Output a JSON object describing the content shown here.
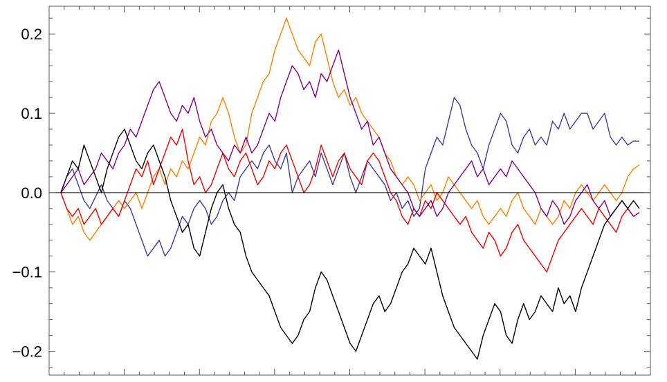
{
  "chart_data": {
    "type": "line",
    "title": "",
    "xlabel": "",
    "ylabel": "",
    "xlim": [
      0,
      1
    ],
    "ylim": [
      -0.23,
      0.235
    ],
    "y_ticks": [
      -0.2,
      -0.1,
      0.0,
      0.1,
      0.2
    ],
    "y_tick_labels": [
      "−0.2",
      "−0.1",
      "0.0",
      "0.1",
      "0.2"
    ],
    "grid": false,
    "zero_line": true,
    "series": [
      {
        "color": "#3b3b9a",
        "x": [
          0,
          0.01,
          0.02,
          0.03,
          0.04,
          0.05,
          0.06,
          0.07,
          0.08,
          0.09,
          0.1,
          0.11,
          0.12,
          0.13,
          0.14,
          0.15,
          0.16,
          0.17,
          0.18,
          0.19,
          0.2,
          0.21,
          0.22,
          0.23,
          0.24,
          0.25,
          0.26,
          0.27,
          0.28,
          0.29,
          0.3,
          0.31,
          0.32,
          0.33,
          0.34,
          0.35,
          0.36,
          0.37,
          0.38,
          0.39,
          0.4,
          0.41,
          0.42,
          0.43,
          0.44,
          0.45,
          0.46,
          0.47,
          0.48,
          0.49,
          0.5,
          0.51,
          0.52,
          0.53,
          0.54,
          0.55,
          0.56,
          0.57,
          0.58,
          0.59,
          0.6,
          0.61,
          0.62,
          0.63,
          0.64,
          0.65,
          0.66,
          0.67,
          0.68,
          0.69,
          0.7,
          0.71,
          0.72,
          0.73,
          0.74,
          0.75,
          0.76,
          0.77,
          0.78,
          0.79,
          0.8,
          0.81,
          0.82,
          0.83,
          0.84,
          0.85,
          0.86,
          0.87,
          0.88,
          0.89,
          0.9,
          0.91,
          0.92,
          0.93,
          0.94,
          0.95,
          0.96,
          0.97,
          0.98,
          0.99,
          1.0
        ],
        "y": [
          0.0,
          0.02,
          0.03,
          0.01,
          -0.01,
          -0.02,
          -0.005,
          0.01,
          -0.01,
          -0.02,
          -0.03,
          -0.01,
          -0.02,
          -0.04,
          -0.06,
          -0.08,
          -0.07,
          -0.06,
          -0.08,
          -0.07,
          -0.05,
          -0.03,
          -0.04,
          -0.02,
          -0.01,
          -0.02,
          -0.04,
          -0.03,
          -0.01,
          0.0,
          -0.01,
          0.02,
          0.03,
          0.04,
          0.03,
          0.05,
          0.06,
          0.04,
          0.03,
          0.05,
          0.0,
          0.02,
          0.03,
          0.04,
          0.02,
          0.05,
          0.03,
          0.01,
          0.03,
          0.05,
          0.02,
          0.0,
          0.02,
          0.04,
          0.03,
          0.02,
          0.01,
          -0.01,
          0.0,
          -0.02,
          -0.01,
          -0.03,
          -0.02,
          0.03,
          0.05,
          0.07,
          0.06,
          0.09,
          0.12,
          0.11,
          0.08,
          0.06,
          0.05,
          0.03,
          0.06,
          0.08,
          0.1,
          0.09,
          0.06,
          0.05,
          0.07,
          0.08,
          0.06,
          0.07,
          0.06,
          0.09,
          0.08,
          0.1,
          0.08,
          0.09,
          0.1,
          0.1,
          0.08,
          0.09,
          0.1,
          0.07,
          0.06,
          0.07,
          0.06,
          0.065,
          0.065
        ]
      },
      {
        "color": "#ff8000",
        "x": [
          0,
          0.01,
          0.02,
          0.03,
          0.04,
          0.05,
          0.06,
          0.07,
          0.08,
          0.09,
          0.1,
          0.11,
          0.12,
          0.13,
          0.14,
          0.15,
          0.16,
          0.17,
          0.18,
          0.19,
          0.2,
          0.21,
          0.22,
          0.23,
          0.24,
          0.25,
          0.26,
          0.27,
          0.28,
          0.29,
          0.3,
          0.31,
          0.32,
          0.33,
          0.34,
          0.35,
          0.36,
          0.37,
          0.38,
          0.39,
          0.4,
          0.41,
          0.42,
          0.43,
          0.44,
          0.45,
          0.46,
          0.47,
          0.48,
          0.49,
          0.5,
          0.51,
          0.52,
          0.53,
          0.54,
          0.55,
          0.56,
          0.57,
          0.58,
          0.59,
          0.6,
          0.61,
          0.62,
          0.63,
          0.64,
          0.65,
          0.66,
          0.67,
          0.68,
          0.69,
          0.7,
          0.71,
          0.72,
          0.73,
          0.74,
          0.75,
          0.76,
          0.77,
          0.78,
          0.79,
          0.8,
          0.81,
          0.82,
          0.83,
          0.84,
          0.85,
          0.86,
          0.87,
          0.88,
          0.89,
          0.9,
          0.91,
          0.92,
          0.93,
          0.94,
          0.95,
          0.96,
          0.97,
          0.98,
          0.99,
          1.0
        ],
        "y": [
          0.0,
          -0.02,
          -0.04,
          -0.03,
          -0.05,
          -0.06,
          -0.05,
          -0.04,
          -0.03,
          -0.02,
          -0.01,
          -0.02,
          -0.01,
          0.0,
          -0.02,
          0.0,
          0.02,
          0.03,
          0.01,
          0.03,
          0.02,
          0.04,
          0.03,
          0.05,
          0.07,
          0.06,
          0.09,
          0.1,
          0.12,
          0.1,
          0.07,
          0.05,
          0.06,
          0.1,
          0.12,
          0.14,
          0.15,
          0.18,
          0.2,
          0.22,
          0.2,
          0.18,
          0.17,
          0.16,
          0.19,
          0.2,
          0.17,
          0.14,
          0.12,
          0.13,
          0.11,
          0.12,
          0.1,
          0.09,
          0.08,
          0.07,
          0.05,
          0.04,
          0.02,
          0.01,
          0.02,
          0.01,
          -0.01,
          0.0,
          0.01,
          -0.01,
          0.0,
          0.02,
          0.01,
          0.0,
          -0.01,
          -0.02,
          -0.01,
          -0.03,
          -0.04,
          -0.03,
          -0.02,
          -0.03,
          -0.01,
          0.0,
          -0.02,
          -0.03,
          -0.04,
          -0.02,
          -0.03,
          -0.04,
          -0.03,
          -0.01,
          -0.02,
          0.0,
          0.01,
          0.0,
          -0.01,
          0.0,
          0.01,
          0.0,
          -0.01,
          0.0,
          0.02,
          0.03,
          0.035
        ]
      },
      {
        "color": "#ee0000",
        "x": [
          0,
          0.01,
          0.02,
          0.03,
          0.04,
          0.05,
          0.06,
          0.07,
          0.08,
          0.09,
          0.1,
          0.11,
          0.12,
          0.13,
          0.14,
          0.15,
          0.16,
          0.17,
          0.18,
          0.19,
          0.2,
          0.21,
          0.22,
          0.23,
          0.24,
          0.25,
          0.26,
          0.27,
          0.28,
          0.29,
          0.3,
          0.31,
          0.32,
          0.33,
          0.34,
          0.35,
          0.36,
          0.37,
          0.38,
          0.39,
          0.4,
          0.41,
          0.42,
          0.43,
          0.44,
          0.45,
          0.46,
          0.47,
          0.48,
          0.49,
          0.5,
          0.51,
          0.52,
          0.53,
          0.54,
          0.55,
          0.56,
          0.57,
          0.58,
          0.59,
          0.6,
          0.61,
          0.62,
          0.63,
          0.64,
          0.65,
          0.66,
          0.67,
          0.68,
          0.69,
          0.7,
          0.71,
          0.72,
          0.73,
          0.74,
          0.75,
          0.76,
          0.77,
          0.78,
          0.79,
          0.8,
          0.81,
          0.82,
          0.83,
          0.84,
          0.85,
          0.86,
          0.87,
          0.88,
          0.89,
          0.9,
          0.91,
          0.92,
          0.93,
          0.94,
          0.95,
          0.96,
          0.97,
          0.98,
          0.99,
          1.0
        ],
        "y": [
          0.0,
          -0.02,
          -0.03,
          -0.02,
          -0.04,
          -0.03,
          -0.02,
          -0.04,
          -0.03,
          -0.02,
          -0.03,
          -0.01,
          0.01,
          0.03,
          0.02,
          0.04,
          0.01,
          0.03,
          0.05,
          0.07,
          0.06,
          0.08,
          0.04,
          0.01,
          0.02,
          0.0,
          0.01,
          0.03,
          0.05,
          0.03,
          0.02,
          0.04,
          0.05,
          0.03,
          0.01,
          0.02,
          0.04,
          0.03,
          0.05,
          0.06,
          0.04,
          0.02,
          0.0,
          0.01,
          0.03,
          0.06,
          0.04,
          0.02,
          0.04,
          0.05,
          0.03,
          0.02,
          0.01,
          0.04,
          0.05,
          0.04,
          0.02,
          0.0,
          -0.01,
          -0.03,
          -0.04,
          -0.02,
          -0.03,
          -0.01,
          -0.02,
          0.0,
          -0.01,
          -0.02,
          -0.03,
          -0.04,
          -0.03,
          -0.05,
          -0.06,
          -0.07,
          -0.05,
          -0.06,
          -0.08,
          -0.07,
          -0.05,
          -0.04,
          -0.06,
          -0.07,
          -0.08,
          -0.09,
          -0.1,
          -0.08,
          -0.06,
          -0.05,
          -0.04,
          -0.03,
          -0.02,
          -0.03,
          -0.04,
          -0.02,
          -0.03,
          -0.04,
          -0.05,
          -0.03,
          -0.02,
          -0.03,
          -0.025
        ]
      },
      {
        "color": "#800080",
        "x": [
          0,
          0.01,
          0.02,
          0.03,
          0.04,
          0.05,
          0.06,
          0.07,
          0.08,
          0.09,
          0.1,
          0.11,
          0.12,
          0.13,
          0.14,
          0.15,
          0.16,
          0.17,
          0.18,
          0.19,
          0.2,
          0.21,
          0.22,
          0.23,
          0.24,
          0.25,
          0.26,
          0.27,
          0.28,
          0.29,
          0.3,
          0.31,
          0.32,
          0.33,
          0.34,
          0.35,
          0.36,
          0.37,
          0.38,
          0.39,
          0.4,
          0.41,
          0.42,
          0.43,
          0.44,
          0.45,
          0.46,
          0.47,
          0.48,
          0.49,
          0.5,
          0.51,
          0.52,
          0.53,
          0.54,
          0.55,
          0.56,
          0.57,
          0.58,
          0.59,
          0.6,
          0.61,
          0.62,
          0.63,
          0.64,
          0.65,
          0.66,
          0.67,
          0.68,
          0.69,
          0.7,
          0.71,
          0.72,
          0.73,
          0.74,
          0.75,
          0.76,
          0.77,
          0.78,
          0.79,
          0.8,
          0.81,
          0.82,
          0.83,
          0.84,
          0.85,
          0.86,
          0.87,
          0.88,
          0.89,
          0.9,
          0.91,
          0.92,
          0.93,
          0.94,
          0.95,
          0.96,
          0.97,
          0.98,
          0.99,
          1.0
        ],
        "y": [
          0.0,
          0.01,
          0.02,
          0.03,
          0.01,
          0.02,
          0.03,
          0.05,
          0.04,
          0.03,
          0.05,
          0.06,
          0.08,
          0.07,
          0.09,
          0.11,
          0.13,
          0.14,
          0.12,
          0.1,
          0.09,
          0.11,
          0.1,
          0.12,
          0.09,
          0.07,
          0.08,
          0.06,
          0.05,
          0.04,
          0.06,
          0.05,
          0.07,
          0.05,
          0.06,
          0.08,
          0.1,
          0.09,
          0.12,
          0.14,
          0.16,
          0.15,
          0.13,
          0.14,
          0.12,
          0.15,
          0.14,
          0.16,
          0.18,
          0.15,
          0.12,
          0.1,
          0.08,
          0.09,
          0.06,
          0.07,
          0.05,
          0.03,
          0.02,
          0.01,
          0.0,
          -0.02,
          -0.03,
          -0.02,
          -0.01,
          -0.03,
          -0.02,
          0.0,
          0.01,
          0.02,
          0.03,
          0.04,
          0.02,
          0.03,
          0.01,
          0.02,
          0.03,
          0.02,
          0.04,
          0.03,
          0.02,
          0.01,
          0.0,
          -0.02,
          -0.03,
          -0.01,
          -0.02,
          -0.04,
          -0.03,
          -0.01,
          0.0,
          0.01,
          -0.01,
          -0.02,
          -0.01,
          -0.03,
          -0.02,
          -0.01,
          -0.02,
          -0.03,
          -0.025
        ]
      },
      {
        "color": "#000000",
        "x": [
          0,
          0.01,
          0.02,
          0.03,
          0.04,
          0.05,
          0.06,
          0.07,
          0.08,
          0.09,
          0.1,
          0.11,
          0.12,
          0.13,
          0.14,
          0.15,
          0.16,
          0.17,
          0.18,
          0.19,
          0.2,
          0.21,
          0.22,
          0.23,
          0.24,
          0.25,
          0.26,
          0.27,
          0.28,
          0.29,
          0.3,
          0.31,
          0.32,
          0.33,
          0.34,
          0.35,
          0.36,
          0.37,
          0.38,
          0.39,
          0.4,
          0.41,
          0.42,
          0.43,
          0.44,
          0.45,
          0.46,
          0.47,
          0.48,
          0.49,
          0.5,
          0.51,
          0.52,
          0.53,
          0.54,
          0.55,
          0.56,
          0.57,
          0.58,
          0.59,
          0.6,
          0.61,
          0.62,
          0.63,
          0.64,
          0.65,
          0.66,
          0.67,
          0.68,
          0.69,
          0.7,
          0.71,
          0.72,
          0.73,
          0.74,
          0.75,
          0.76,
          0.77,
          0.78,
          0.79,
          0.8,
          0.81,
          0.82,
          0.83,
          0.84,
          0.85,
          0.86,
          0.87,
          0.88,
          0.89,
          0.9,
          0.91,
          0.92,
          0.93,
          0.94,
          0.95,
          0.96,
          0.97,
          0.98,
          0.99,
          1.0
        ],
        "y": [
          0.0,
          0.02,
          0.04,
          0.03,
          0.06,
          0.04,
          0.02,
          0.0,
          0.03,
          0.05,
          0.07,
          0.08,
          0.06,
          0.04,
          0.03,
          0.05,
          0.06,
          0.04,
          0.02,
          -0.01,
          -0.03,
          -0.05,
          -0.04,
          -0.07,
          -0.08,
          -0.05,
          -0.02,
          0.0,
          0.01,
          -0.02,
          -0.04,
          -0.05,
          -0.08,
          -0.1,
          -0.11,
          -0.12,
          -0.13,
          -0.15,
          -0.17,
          -0.18,
          -0.19,
          -0.18,
          -0.16,
          -0.15,
          -0.12,
          -0.1,
          -0.11,
          -0.13,
          -0.15,
          -0.17,
          -0.19,
          -0.2,
          -0.18,
          -0.16,
          -0.14,
          -0.13,
          -0.15,
          -0.14,
          -0.12,
          -0.1,
          -0.09,
          -0.07,
          -0.08,
          -0.09,
          -0.07,
          -0.1,
          -0.13,
          -0.15,
          -0.17,
          -0.18,
          -0.19,
          -0.2,
          -0.21,
          -0.18,
          -0.16,
          -0.14,
          -0.15,
          -0.18,
          -0.19,
          -0.16,
          -0.14,
          -0.16,
          -0.15,
          -0.13,
          -0.14,
          -0.15,
          -0.12,
          -0.14,
          -0.13,
          -0.15,
          -0.12,
          -0.1,
          -0.08,
          -0.06,
          -0.04,
          -0.03,
          -0.02,
          -0.01,
          -0.02,
          -0.01,
          -0.02
        ]
      }
    ]
  }
}
